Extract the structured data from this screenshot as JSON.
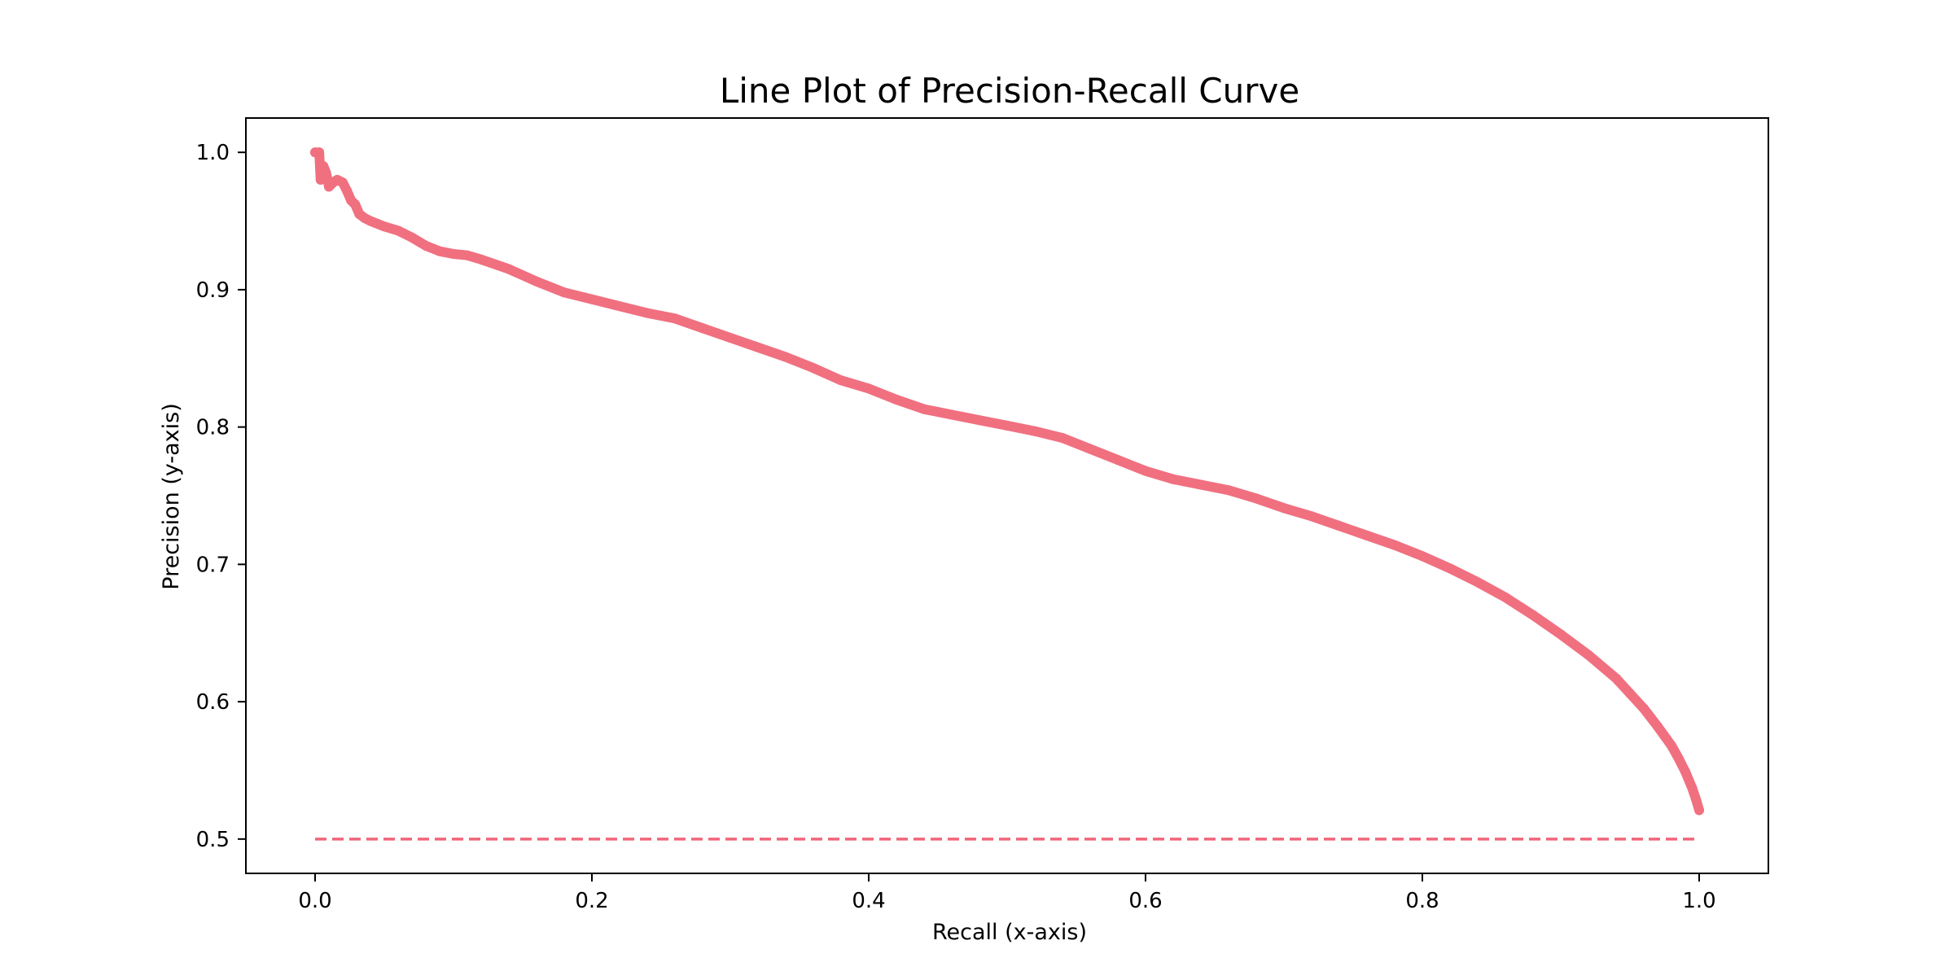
{
  "chart_data": {
    "type": "line",
    "title": "Line Plot of Precision-Recall Curve",
    "xlabel": "Recall (x-axis)",
    "ylabel": "Precision (y-axis)",
    "xlim": [
      -0.05,
      1.05
    ],
    "ylim": [
      0.475,
      1.025
    ],
    "x_ticks": [
      0.0,
      0.2,
      0.4,
      0.6,
      0.8,
      1.0
    ],
    "x_tick_labels": [
      "0.0",
      "0.2",
      "0.4",
      "0.6",
      "0.8",
      "1.0"
    ],
    "y_ticks": [
      0.5,
      0.6,
      0.7,
      0.8,
      0.9,
      1.0
    ],
    "y_tick_labels": [
      "0.5",
      "0.6",
      "0.7",
      "0.8",
      "0.9",
      "1.0"
    ],
    "grid": false,
    "legend": "none",
    "series": [
      {
        "style": "dashed line",
        "color": "#f0657a",
        "x": [
          0.0,
          1.0
        ],
        "y": [
          0.5,
          0.5
        ]
      },
      {
        "style": "line with point markers",
        "color": "#f07080",
        "x": [
          0.0,
          0.003,
          0.004,
          0.006,
          0.008,
          0.01,
          0.013,
          0.016,
          0.02,
          0.023,
          0.026,
          0.029,
          0.032,
          0.036,
          0.04,
          0.05,
          0.06,
          0.07,
          0.08,
          0.09,
          0.1,
          0.11,
          0.12,
          0.14,
          0.16,
          0.18,
          0.2,
          0.22,
          0.24,
          0.26,
          0.28,
          0.3,
          0.32,
          0.34,
          0.36,
          0.38,
          0.4,
          0.42,
          0.44,
          0.46,
          0.48,
          0.5,
          0.52,
          0.54,
          0.56,
          0.58,
          0.6,
          0.62,
          0.64,
          0.66,
          0.68,
          0.7,
          0.72,
          0.74,
          0.76,
          0.78,
          0.8,
          0.82,
          0.84,
          0.86,
          0.88,
          0.9,
          0.92,
          0.94,
          0.95,
          0.96,
          0.97,
          0.98,
          0.985,
          0.99,
          0.995,
          0.998,
          1.0
        ],
        "y": [
          1.0,
          1.0,
          0.98,
          0.99,
          0.985,
          0.975,
          0.978,
          0.98,
          0.978,
          0.972,
          0.965,
          0.962,
          0.955,
          0.952,
          0.95,
          0.946,
          0.943,
          0.938,
          0.932,
          0.928,
          0.926,
          0.925,
          0.922,
          0.915,
          0.906,
          0.898,
          0.893,
          0.888,
          0.883,
          0.879,
          0.872,
          0.865,
          0.858,
          0.851,
          0.843,
          0.834,
          0.828,
          0.82,
          0.813,
          0.809,
          0.805,
          0.801,
          0.797,
          0.792,
          0.784,
          0.776,
          0.768,
          0.762,
          0.758,
          0.754,
          0.748,
          0.741,
          0.735,
          0.728,
          0.721,
          0.714,
          0.706,
          0.697,
          0.687,
          0.676,
          0.663,
          0.649,
          0.634,
          0.617,
          0.606,
          0.595,
          0.582,
          0.568,
          0.559,
          0.549,
          0.537,
          0.528,
          0.521
        ]
      }
    ]
  }
}
